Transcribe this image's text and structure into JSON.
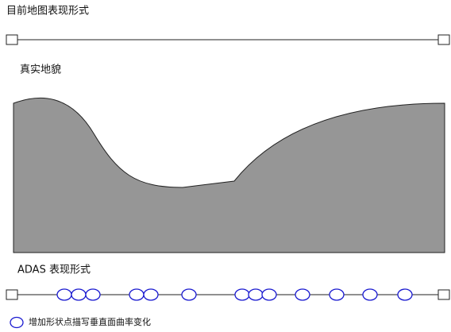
{
  "labels": {
    "current": "目前地图表现形式",
    "terrain": "真实地貌",
    "adas": "ADAS 表现形式",
    "legend": "增加形状点描写垂直面曲率变化"
  }
}
